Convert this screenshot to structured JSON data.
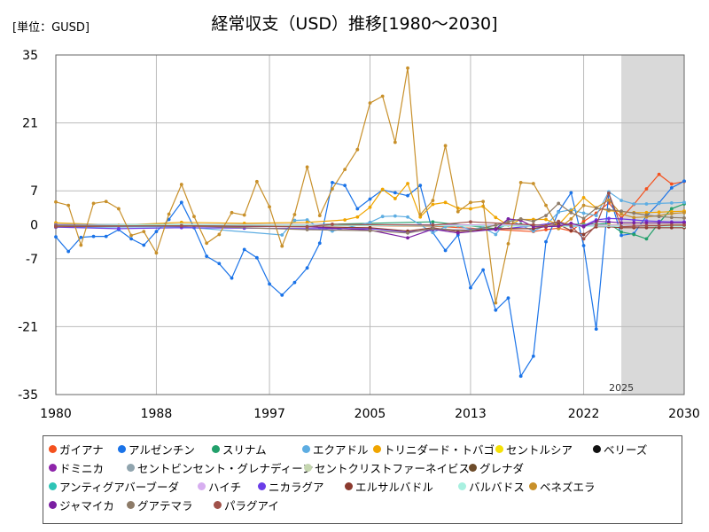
{
  "unit_label": "[単位：GUSD]",
  "chart_data": {
    "type": "line",
    "title": "経常収支（USD）推移[1980～2030]",
    "xlim": [
      1980,
      2030
    ],
    "ylim": [
      -35,
      35
    ],
    "x_ticks": [
      1980,
      1988,
      1997,
      2005,
      2013,
      2022,
      2030
    ],
    "y_ticks": [
      35,
      21,
      7,
      0,
      -7,
      -21,
      -35
    ],
    "forecast_start": 2025,
    "forecast_label": "2025",
    "grid": true,
    "legend_position": "bottom",
    "series": [
      {
        "name": "ガイアナ",
        "color": "#f4511e",
        "x": [
          1980,
          1990,
          2000,
          2010,
          2018,
          2019,
          2020,
          2021,
          2022,
          2023,
          2024,
          2025,
          2026,
          2027,
          2028,
          2029,
          2030
        ],
        "y": [
          -0.1,
          -0.1,
          -0.1,
          -0.3,
          -1.4,
          -1.0,
          -0.7,
          -1.3,
          0.7,
          2.4,
          4.5,
          1.4,
          4.2,
          7.4,
          10.4,
          8.4,
          8.9
        ]
      },
      {
        "name": "アルゼンチン",
        "color": "#1a73e8",
        "x": [
          1980,
          1981,
          1982,
          1983,
          1984,
          1985,
          1986,
          1987,
          1988,
          1989,
          1990,
          1991,
          1992,
          1993,
          1994,
          1995,
          1996,
          1997,
          1998,
          1999,
          2000,
          2001,
          2002,
          2003,
          2004,
          2005,
          2006,
          2007,
          2008,
          2009,
          2010,
          2011,
          2012,
          2013,
          2014,
          2015,
          2016,
          2017,
          2018,
          2019,
          2020,
          2021,
          2022,
          2023,
          2024,
          2025,
          2026,
          2027,
          2028,
          2029,
          2030
        ],
        "y": [
          -2.5,
          -5.5,
          -2.6,
          -2.4,
          -2.4,
          -1.0,
          -2.9,
          -4.2,
          -1.4,
          1.1,
          4.6,
          -0.6,
          -6.5,
          -8.0,
          -11.0,
          -5.1,
          -6.8,
          -12.2,
          -14.5,
          -11.9,
          -8.9,
          -3.8,
          8.7,
          8.1,
          3.3,
          5.3,
          7.2,
          6.6,
          6.0,
          8.1,
          -1.6,
          -5.3,
          -2.1,
          -13.0,
          -9.3,
          -17.6,
          -15.1,
          -31.2,
          -27.1,
          -3.5,
          2.7,
          6.6,
          -4.3,
          -21.5,
          6.5,
          -2.2,
          -1.8,
          1.8,
          4.5,
          7.6,
          9.0
        ]
      },
      {
        "name": "スリナム",
        "color": "#22a06b",
        "x": [
          1980,
          1990,
          2000,
          2010,
          2015,
          2016,
          2017,
          2018,
          2019,
          2020,
          2021,
          2022,
          2023,
          2024,
          2025,
          2026,
          2027,
          2028,
          2029,
          2030
        ],
        "y": [
          0.0,
          0.0,
          0.0,
          0.6,
          -0.8,
          0.0,
          0.1,
          -0.1,
          -0.4,
          0.3,
          0.1,
          0.1,
          0.1,
          0.3,
          -1.5,
          -2.0,
          -2.9,
          0.4,
          3.3,
          4.3
        ]
      },
      {
        "name": "エクアドル",
        "color": "#5dade2",
        "x": [
          1980,
          1990,
          1998,
          1999,
          2000,
          2001,
          2002,
          2005,
          2006,
          2007,
          2008,
          2009,
          2010,
          2011,
          2012,
          2013,
          2014,
          2015,
          2016,
          2017,
          2018,
          2019,
          2020,
          2021,
          2022,
          2023,
          2024,
          2025,
          2026,
          2027,
          2028,
          2029,
          2030
        ],
        "y": [
          -0.5,
          -0.4,
          -2.1,
          0.9,
          1.0,
          -0.7,
          -1.3,
          0.5,
          1.7,
          1.8,
          1.6,
          0.0,
          -1.6,
          -0.4,
          -0.2,
          -1.0,
          -0.6,
          -2.0,
          1.2,
          -0.1,
          -1.3,
          -0.1,
          2.6,
          3.1,
          2.4,
          1.9,
          6.8,
          5.0,
          4.3,
          4.3,
          4.4,
          4.5,
          4.6
        ]
      },
      {
        "name": "トリニダード・トバゴ",
        "color": "#f0a500",
        "x": [
          1980,
          1985,
          1990,
          1995,
          2000,
          2003,
          2004,
          2005,
          2006,
          2007,
          2008,
          2009,
          2010,
          2011,
          2012,
          2013,
          2014,
          2015,
          2016,
          2017,
          2018,
          2019,
          2020,
          2021,
          2022,
          2023,
          2024,
          2025,
          2026,
          2027,
          2028,
          2029,
          2030
        ],
        "y": [
          0.4,
          -0.1,
          0.5,
          0.3,
          0.5,
          1.0,
          1.6,
          3.6,
          7.3,
          5.4,
          8.5,
          1.6,
          4.2,
          4.6,
          3.4,
          3.3,
          3.8,
          1.5,
          -0.1,
          1.1,
          1.1,
          1.1,
          0.0,
          2.8,
          5.6,
          3.5,
          2.9,
          2.7,
          2.5,
          2.5,
          2.6,
          2.7,
          2.8
        ]
      },
      {
        "name": "セントルシア",
        "color": "#f5e105",
        "x": [
          1980,
          1990,
          2000,
          2010,
          2020,
          2021,
          2022,
          2023,
          2024,
          2025,
          2030
        ],
        "y": [
          0.0,
          -0.1,
          -0.1,
          -0.2,
          -0.3,
          -0.1,
          -0.1,
          -0.1,
          0.0,
          0.0,
          0.0
        ]
      },
      {
        "name": "ベリーズ",
        "color": "#111111",
        "x": [
          1980,
          1990,
          2000,
          2010,
          2020,
          2025,
          2030
        ],
        "y": [
          0.0,
          0.0,
          -0.1,
          -0.1,
          -0.1,
          -0.1,
          -0.1
        ]
      },
      {
        "name": "ドミニカ",
        "color": "#8e24aa",
        "x": [
          1980,
          1990,
          2000,
          2010,
          2020,
          2025,
          2030
        ],
        "y": [
          0.0,
          0.0,
          0.0,
          0.0,
          -0.1,
          -0.1,
          -0.1
        ]
      },
      {
        "name": "セントビンセント・グレナディーン",
        "color": "#90a4ae",
        "x": [
          1980,
          1990,
          2000,
          2010,
          2020,
          2025,
          2030
        ],
        "y": [
          0.0,
          0.0,
          0.0,
          -0.2,
          -0.2,
          -0.2,
          -0.2
        ]
      },
      {
        "name": "セントクリストファーネイビス",
        "color": "#c5d6b0",
        "x": [
          1980,
          1990,
          2000,
          2010,
          2020,
          2025,
          2030
        ],
        "y": [
          0.0,
          0.0,
          -0.1,
          -0.1,
          0.0,
          -0.1,
          -0.1
        ]
      },
      {
        "name": "グレナダ",
        "color": "#6d4c2a",
        "x": [
          1980,
          1990,
          2000,
          2010,
          2020,
          2025,
          2030
        ],
        "y": [
          0.0,
          0.0,
          -0.1,
          -0.2,
          -0.2,
          -0.2,
          -0.2
        ]
      },
      {
        "name": "アンティグアバーブーダ",
        "color": "#2ec4b6",
        "x": [
          1980,
          1990,
          2000,
          2010,
          2020,
          2025,
          2030
        ],
        "y": [
          0.0,
          0.0,
          -0.1,
          -0.1,
          -0.2,
          -0.2,
          -0.2
        ]
      },
      {
        "name": "ハイチ",
        "color": "#d7aef0",
        "x": [
          1980,
          1990,
          2000,
          2010,
          2020,
          2025,
          2030
        ],
        "y": [
          0.0,
          0.0,
          0.0,
          -0.1,
          0.0,
          -0.1,
          -0.1
        ]
      },
      {
        "name": "ニカラグア",
        "color": "#6a3de8",
        "x": [
          1980,
          1985,
          1990,
          1995,
          2000,
          2005,
          2008,
          2010,
          2013,
          2015,
          2018,
          2020,
          2021,
          2022,
          2023,
          2024,
          2025,
          2026,
          2027,
          2028,
          2029,
          2030
        ],
        "y": [
          -0.5,
          -0.8,
          -0.6,
          -0.7,
          -0.8,
          -0.8,
          -1.5,
          -1.0,
          -1.1,
          -1.0,
          -0.2,
          0.5,
          -0.4,
          -0.2,
          1.0,
          1.3,
          1.2,
          1.0,
          0.8,
          0.7,
          0.6,
          0.6
        ]
      },
      {
        "name": "エルサルバドル",
        "color": "#8b3a2e",
        "x": [
          1980,
          1990,
          2000,
          2005,
          2008,
          2010,
          2012,
          2015,
          2018,
          2020,
          2021,
          2022,
          2023,
          2024,
          2025,
          2026,
          2027,
          2028,
          2029,
          2030
        ],
        "y": [
          0.0,
          -0.2,
          -0.4,
          -0.6,
          -1.3,
          -0.6,
          -1.4,
          -0.8,
          -0.8,
          0.1,
          -1.2,
          -2.0,
          -0.4,
          -0.4,
          -0.6,
          -0.6,
          -0.6,
          -0.6,
          -0.6,
          -0.6
        ]
      },
      {
        "name": "バルバドス",
        "color": "#a8f0e0",
        "x": [
          1980,
          1990,
          2000,
          2010,
          2020,
          2025,
          2030
        ],
        "y": [
          0.0,
          0.0,
          -0.1,
          -0.2,
          -0.3,
          -0.3,
          -0.3
        ]
      },
      {
        "name": "ベネズエラ",
        "color": "#c8902a",
        "x": [
          1980,
          1981,
          1982,
          1983,
          1984,
          1985,
          1986,
          1987,
          1988,
          1989,
          1990,
          1991,
          1992,
          1993,
          1994,
          1995,
          1996,
          1997,
          1998,
          1999,
          2000,
          2001,
          2002,
          2003,
          2004,
          2005,
          2006,
          2007,
          2008,
          2009,
          2010,
          2011,
          2012,
          2013,
          2014,
          2015,
          2016,
          2017,
          2018,
          2019,
          2020,
          2021,
          2022,
          2023,
          2024,
          2025,
          2026,
          2027,
          2028,
          2029,
          2030
        ],
        "y": [
          4.7,
          4.0,
          -4.2,
          4.4,
          4.8,
          3.3,
          -2.2,
          -1.4,
          -5.8,
          2.2,
          8.3,
          1.7,
          -3.8,
          -2.0,
          2.5,
          2.0,
          8.9,
          3.7,
          -4.4,
          2.1,
          11.9,
          1.9,
          7.4,
          11.4,
          15.5,
          25.1,
          26.5,
          17.0,
          32.3,
          2.1,
          5.0,
          16.3,
          2.7,
          4.6,
          4.8,
          -16.1,
          -3.9,
          8.7,
          8.5,
          4.0,
          -0.8,
          1.2,
          4.0,
          3.5,
          5.1,
          2.2,
          1.5,
          1.6,
          1.9,
          2.3,
          2.5
        ]
      },
      {
        "name": "ジャマイカ",
        "color": "#7b1fa2",
        "x": [
          1980,
          1990,
          2000,
          2005,
          2008,
          2010,
          2012,
          2015,
          2016,
          2017,
          2018,
          2019,
          2020,
          2021,
          2022,
          2023,
          2024,
          2025,
          2026,
          2027,
          2028,
          2029,
          2030
        ],
        "y": [
          -0.1,
          -0.3,
          -0.4,
          -1.1,
          -2.7,
          -0.9,
          -1.7,
          -0.9,
          1.2,
          0.9,
          -0.4,
          -0.4,
          -0.3,
          0.3,
          -0.4,
          0.7,
          0.6,
          0.4,
          0.4,
          0.4,
          0.4,
          0.4,
          0.4
        ]
      },
      {
        "name": "グアテマラ",
        "color": "#8d7b68",
        "x": [
          1980,
          1990,
          2000,
          2005,
          2008,
          2010,
          2013,
          2015,
          2016,
          2017,
          2018,
          2019,
          2020,
          2021,
          2022,
          2023,
          2024,
          2025,
          2026,
          2027,
          2028,
          2029,
          2030
        ],
        "y": [
          -0.2,
          -0.2,
          -1.0,
          -1.2,
          -1.7,
          -0.8,
          -1.2,
          -0.1,
          0.6,
          1.2,
          0.7,
          1.9,
          4.4,
          2.5,
          1.3,
          3.4,
          3.1,
          2.8,
          2.4,
          2.0,
          1.7,
          1.5,
          1.4
        ]
      },
      {
        "name": "パラグアイ",
        "color": "#a0524a",
        "x": [
          1980,
          1990,
          2000,
          2002,
          2010,
          2013,
          2018,
          2019,
          2020,
          2021,
          2022,
          2023,
          2024,
          2025,
          2026,
          2027,
          2028,
          2029,
          2030
        ],
        "y": [
          -0.4,
          -0.2,
          -0.4,
          0.1,
          -0.1,
          0.6,
          0.0,
          -0.2,
          0.7,
          -0.2,
          -2.9,
          -0.1,
          6.5,
          -0.4,
          -0.3,
          -0.2,
          -0.2,
          -0.1,
          -0.1
        ]
      }
    ]
  }
}
